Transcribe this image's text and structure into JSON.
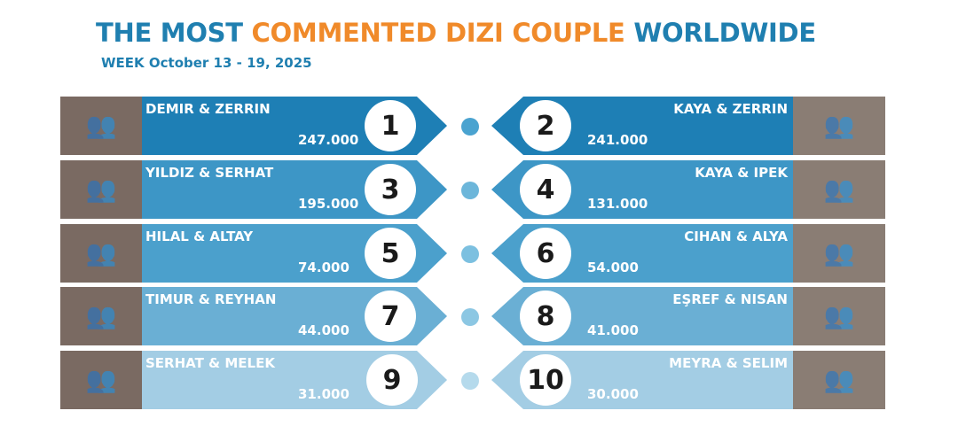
{
  "header": {
    "title_part1": "THE MOST ",
    "title_part2": "COMMENTED DIZI COUPLE",
    "title_part3": " WORLDWIDE",
    "subtitle": "WEEK October 13 - 19, 2025"
  },
  "colors": {
    "title_blue": "#1f7fb0",
    "title_orange": "#f08a2a",
    "row_colors": [
      "#1e7fb5",
      "#3d96c6",
      "#4ba0cc",
      "#6aafd4",
      "#a3cde4"
    ],
    "dot_colors": [
      "#4aa3d0",
      "#6cb6da",
      "#7cc0e0",
      "#8cc7e3",
      "#b5daec"
    ]
  },
  "rankings": [
    {
      "rank": "1",
      "couple": "DEMIR & ZERRIN",
      "comments": "247.000",
      "icon": "couple-photo"
    },
    {
      "rank": "2",
      "couple": "KAYA & ZERRIN",
      "comments": "241.000",
      "icon": "couple-photo"
    },
    {
      "rank": "3",
      "couple": "YILDIZ & SERHAT",
      "comments": "195.000",
      "icon": "couple-photo"
    },
    {
      "rank": "4",
      "couple": "KAYA & IPEK",
      "comments": "131.000",
      "icon": "couple-photo"
    },
    {
      "rank": "5",
      "couple": "HILAL &  ALTAY",
      "comments": "74.000",
      "icon": "couple-photo"
    },
    {
      "rank": "6",
      "couple": "CIHAN & ALYA",
      "comments": "54.000",
      "icon": "couple-photo"
    },
    {
      "rank": "7",
      "couple": "TIMUR & REYHAN",
      "comments": "44.000",
      "icon": "couple-photo"
    },
    {
      "rank": "8",
      "couple": "EŞREF & NISAN",
      "comments": "41.000",
      "icon": "couple-photo"
    },
    {
      "rank": "9",
      "couple": "SERHAT & MELEK",
      "comments": "31.000",
      "icon": "couple-photo"
    },
    {
      "rank": "10",
      "couple": "MEYRA &  SELIM",
      "comments": "30.000",
      "icon": "couple-photo"
    }
  ]
}
